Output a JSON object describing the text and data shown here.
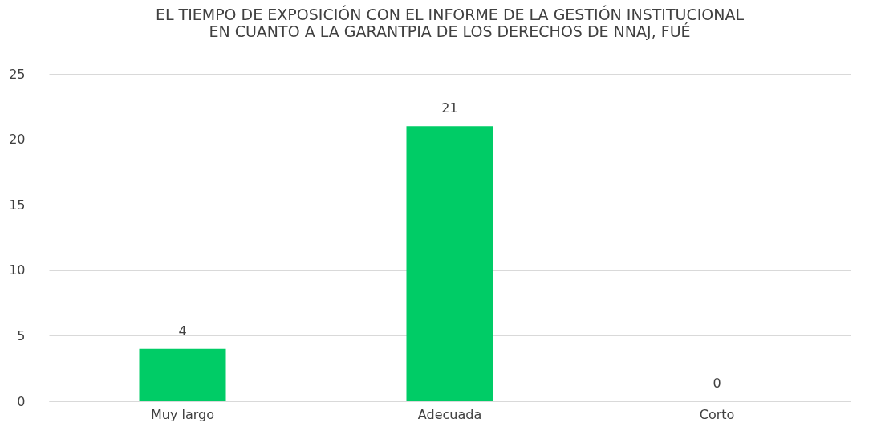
{
  "chart_data": {
    "type": "bar",
    "title": "EL TIEMPO DE EXPOSICIÓN CON EL INFORME DE LA GESTIÓN INSTITUCIONAL\nEN CUANTO A LA GARANTPIA DE LOS DERECHOS DE NNAJ, FUÉ",
    "categories": [
      "Muy largo",
      "Adecuada",
      "Corto"
    ],
    "values": [
      4,
      21,
      0
    ],
    "color": "#00cc66",
    "ylim": [
      0,
      25
    ],
    "yticks": [
      0,
      5,
      10,
      15,
      20,
      25
    ],
    "grid": "y",
    "data_labels": true
  }
}
